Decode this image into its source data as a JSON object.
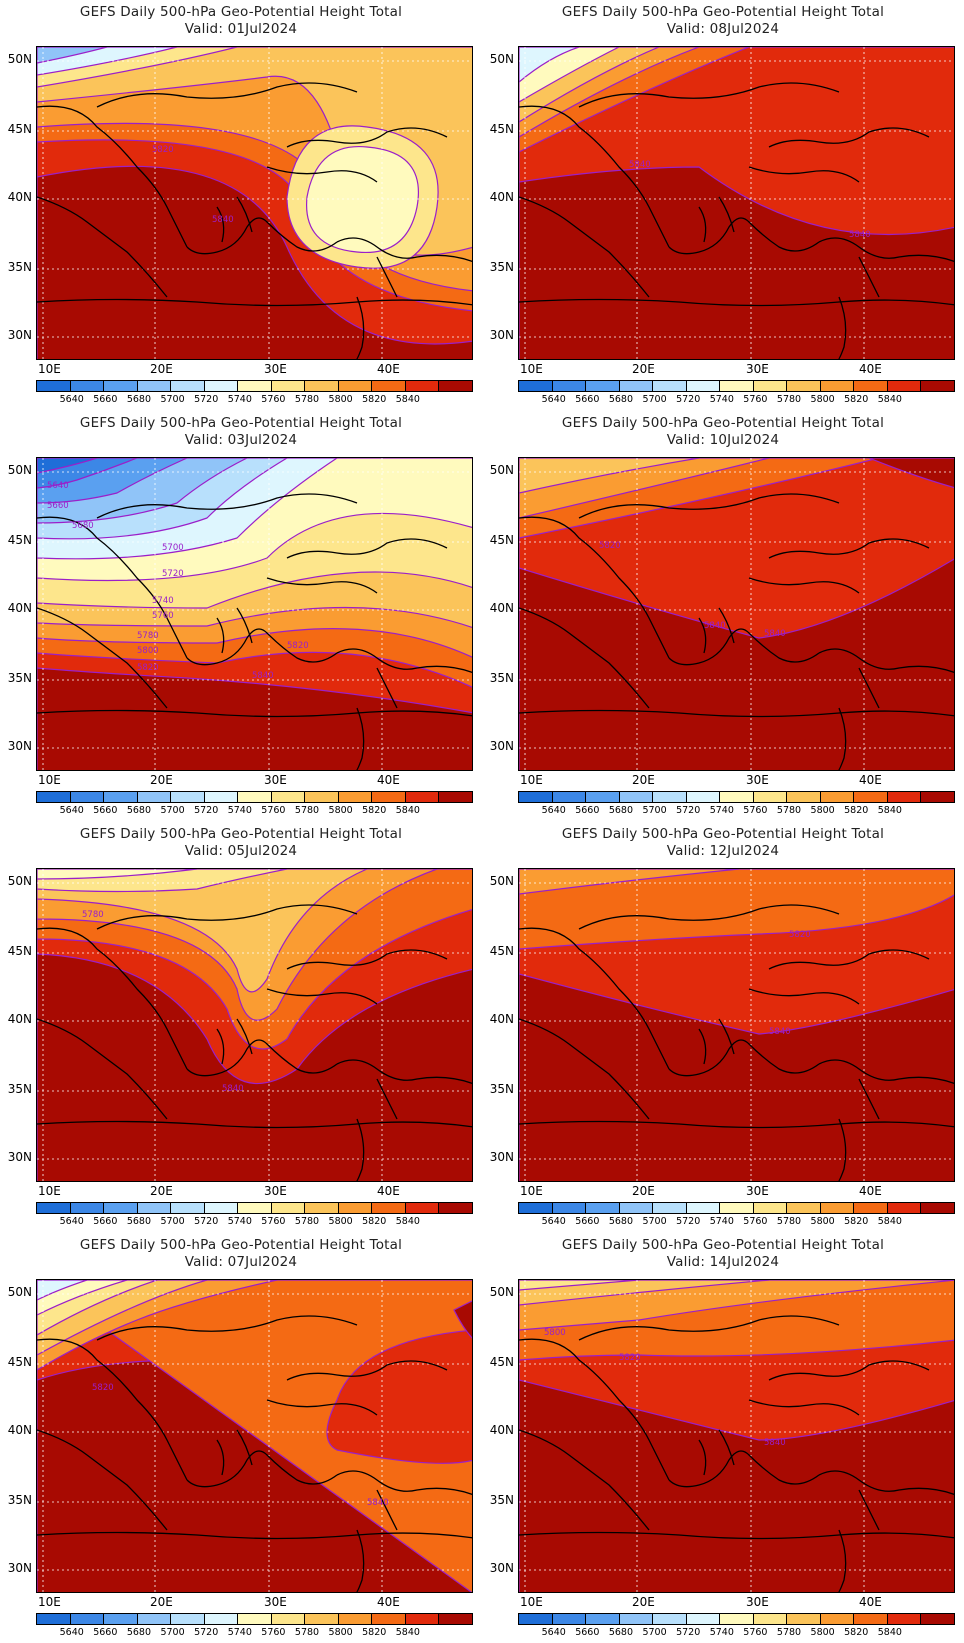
{
  "colorbar": {
    "colors": [
      "#1e6ed8",
      "#3c87e6",
      "#5aa0f0",
      "#90c4f8",
      "#b8e0fc",
      "#def6fe",
      "#fffabe",
      "#fde68c",
      "#fbc45a",
      "#fa9c32",
      "#f46a14",
      "#e12a0c",
      "#a80a02"
    ],
    "labels": [
      "5640",
      "5660",
      "5680",
      "5700",
      "5720",
      "5740",
      "5760",
      "5780",
      "5800",
      "5820",
      "5840"
    ]
  },
  "axes": {
    "lat_labels": [
      "50N",
      "45N",
      "40N",
      "35N",
      "30N"
    ],
    "lon_labels": [
      "10E",
      "20E",
      "30E",
      "40E"
    ]
  },
  "panels": [
    {
      "title": "GEFS Daily 500-hPa Geo-Potential Height Total",
      "valid": "Valid: 01Jul2024",
      "contour_labels": [
        "5820",
        "5840"
      ]
    },
    {
      "title": "GEFS Daily 500-hPa Geo-Potential Height Total",
      "valid": "Valid: 08Jul2024",
      "contour_labels": [
        "5840",
        "5840"
      ]
    },
    {
      "title": "GEFS Daily 500-hPa Geo-Potential Height Total",
      "valid": "Valid: 03Jul2024",
      "contour_labels": [
        "5640",
        "5660",
        "5680",
        "5700",
        "5720",
        "5740",
        "5760",
        "5780",
        "5800",
        "5820",
        "5820",
        "5840"
      ]
    },
    {
      "title": "GEFS Daily 500-hPa Geo-Potential Height Total",
      "valid": "Valid: 10Jul2024",
      "contour_labels": [
        "5820",
        "5840",
        "5840"
      ]
    },
    {
      "title": "GEFS Daily 500-hPa Geo-Potential Height Total",
      "valid": "Valid: 05Jul2024",
      "contour_labels": [
        "5780",
        "5840"
      ]
    },
    {
      "title": "GEFS Daily 500-hPa Geo-Potential Height Total",
      "valid": "Valid: 12Jul2024",
      "contour_labels": [
        "5820",
        "5840"
      ]
    },
    {
      "title": "GEFS Daily 500-hPa Geo-Potential Height Total",
      "valid": "Valid: 07Jul2024",
      "contour_labels": [
        "5820",
        "5840"
      ]
    },
    {
      "title": "GEFS Daily 500-hPa Geo-Potential Height Total",
      "valid": "Valid: 14Jul2024",
      "contour_labels": [
        "5800",
        "5820",
        "5840"
      ]
    }
  ]
}
